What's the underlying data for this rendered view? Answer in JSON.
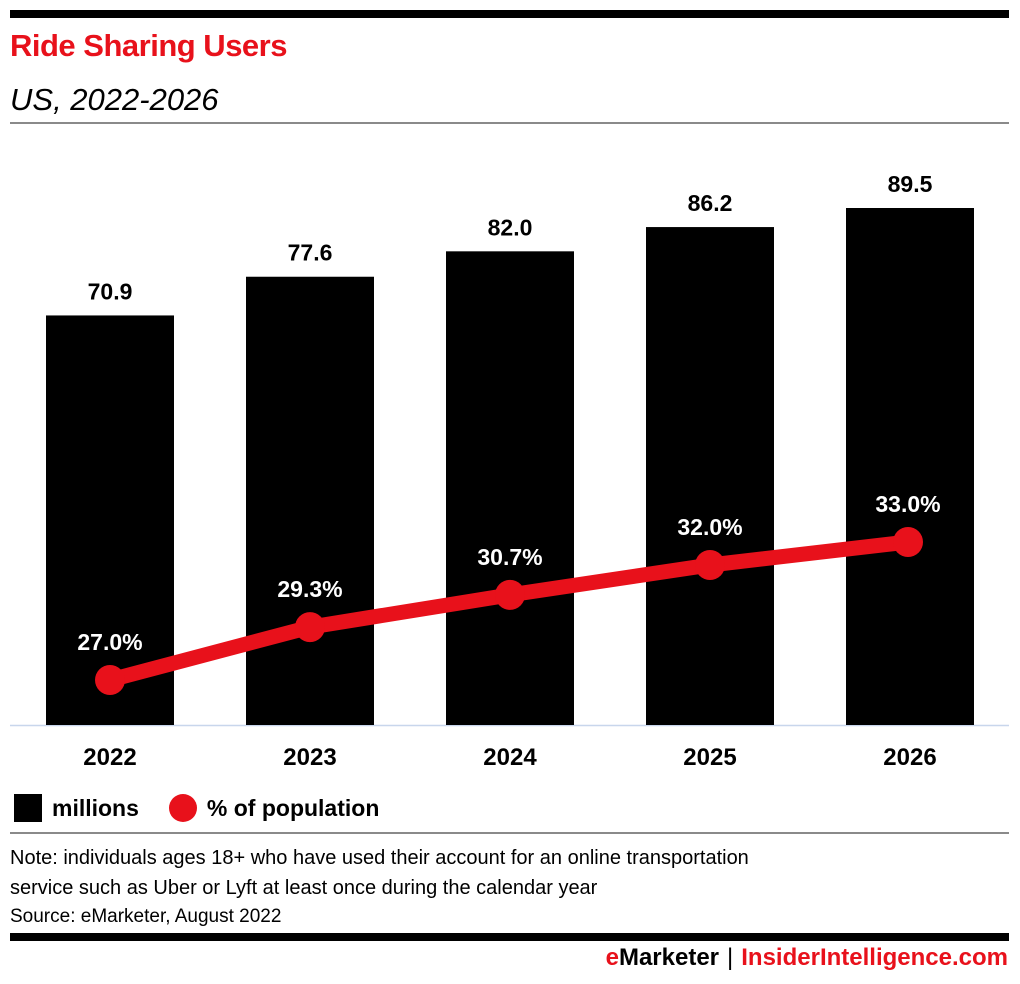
{
  "header": {
    "title": "Ride Sharing Users",
    "subtitle": "US, 2022-2026"
  },
  "chart_data": {
    "type": "bar",
    "title": "Ride Sharing Users",
    "subtitle": "US, 2022-2026",
    "categories": [
      "2022",
      "2023",
      "2024",
      "2025",
      "2026"
    ],
    "series": [
      {
        "name": "millions",
        "type": "bar",
        "color": "#000000",
        "values": [
          70.9,
          77.6,
          82.0,
          86.2,
          89.5
        ],
        "labels": [
          "70.9",
          "77.6",
          "82.0",
          "86.2",
          "89.5"
        ]
      },
      {
        "name": "% of population",
        "type": "line",
        "color": "#e8111b",
        "values": [
          27.0,
          29.3,
          30.7,
          32.0,
          33.0
        ],
        "labels": [
          "27.0%",
          "29.3%",
          "30.7%",
          "32.0%",
          "33.0%"
        ]
      }
    ],
    "xlabel": "",
    "ylabel": "",
    "ylim": [
      0,
      89.5
    ],
    "grid": false,
    "legend_position": "bottom-left"
  },
  "legend": {
    "items": [
      {
        "label": "millions",
        "color": "#000000",
        "shape": "square"
      },
      {
        "label": "% of population",
        "color": "#e8111b",
        "shape": "circle"
      }
    ]
  },
  "footer": {
    "note_line1": "Note: individuals ages 18+ who have used their account for an online transportation",
    "note_line2": "service such as Uber or Lyft at least once during the calendar year",
    "source": "Source: eMarketer, August 2022",
    "brand_e": "e",
    "brand_marketer": "Marketer",
    "brand_sep": "|",
    "brand_ii": "InsiderIntelligence.com"
  },
  "colors": {
    "accent": "#e8111b",
    "bar": "#000000",
    "baseline": "#c8d6ec"
  }
}
